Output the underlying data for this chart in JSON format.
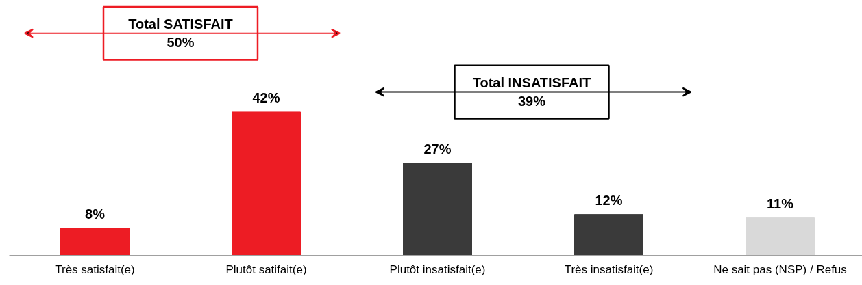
{
  "chart_data": {
    "type": "bar",
    "categories": [
      "Très satisfait(e)",
      "Plutôt satifait(e)",
      "Plutôt insatisfait(e)",
      "Très insatisfait(e)",
      "Ne sait pas (NSP) / Refus"
    ],
    "values": [
      8,
      42,
      27,
      12,
      11
    ],
    "colors": [
      "#ed1c24",
      "#ed1c24",
      "#3a3a3a",
      "#3a3a3a",
      "#d9d9d9"
    ],
    "value_labels": [
      "8%",
      "42%",
      "27%",
      "12%",
      "11%"
    ],
    "annotations": [
      "Total SATISFAIT\n50%",
      "Total INSATISFAIT\n39%"
    ],
    "grid": false
  }
}
